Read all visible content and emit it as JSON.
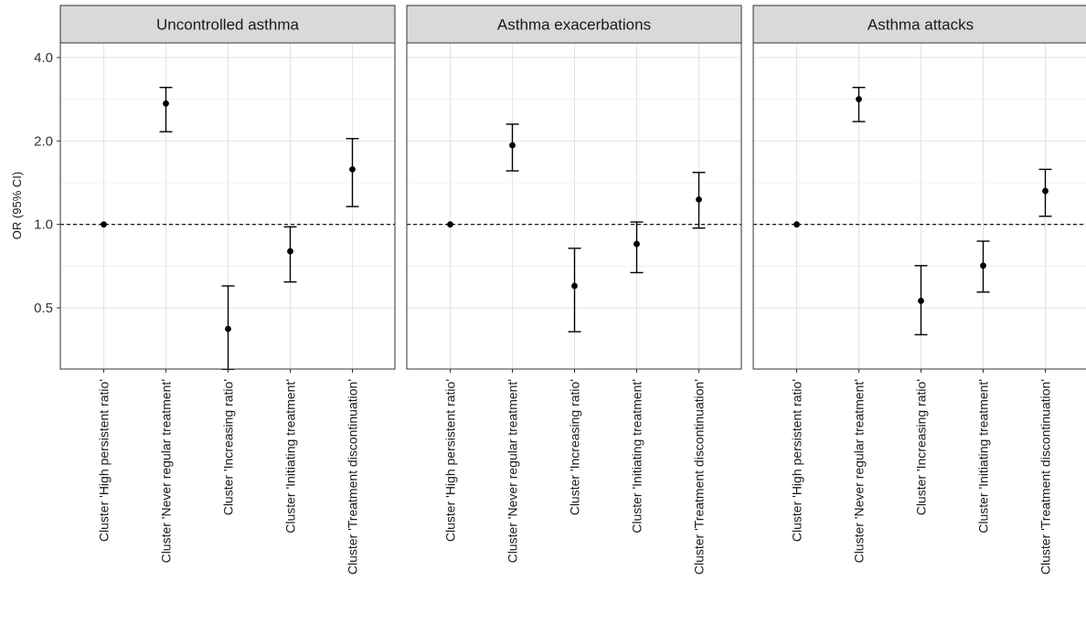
{
  "chart_data": {
    "type": "scatter",
    "ylabel": "OR (95% CI)",
    "yscale": "log",
    "yticks": [
      0.5,
      1.0,
      2.0,
      4.0
    ],
    "ytick_labels": [
      "0.5",
      "1.0",
      "2.0",
      "4.0"
    ],
    "ylim": [
      0.32,
      4.4
    ],
    "reference_line": 1.0,
    "grid": true,
    "categories": [
      "Cluster 'High persistent ratio'",
      "Cluster 'Never regular treatment'",
      "Cluster 'Increasing ratio'",
      "Cluster 'Initiating treatment'",
      "Cluster 'Treatment discontinuation'"
    ],
    "panels": [
      {
        "title": "Uncontrolled asthma",
        "points": [
          {
            "or": 1.0,
            "lower": 1.0,
            "upper": 1.0
          },
          {
            "or": 2.73,
            "lower": 2.16,
            "upper": 3.12
          },
          {
            "or": 0.42,
            "lower": 0.3,
            "upper": 0.6
          },
          {
            "or": 0.8,
            "lower": 0.62,
            "upper": 0.98
          },
          {
            "or": 1.58,
            "lower": 1.16,
            "upper": 2.04
          }
        ]
      },
      {
        "title": "Asthma exacerbations",
        "points": [
          {
            "or": 1.0,
            "lower": 1.0,
            "upper": 1.0
          },
          {
            "or": 1.93,
            "lower": 1.56,
            "upper": 2.3
          },
          {
            "or": 0.6,
            "lower": 0.41,
            "upper": 0.82
          },
          {
            "or": 0.85,
            "lower": 0.67,
            "upper": 1.02
          },
          {
            "or": 1.23,
            "lower": 0.97,
            "upper": 1.54
          }
        ]
      },
      {
        "title": "Asthma attacks",
        "points": [
          {
            "or": 1.0,
            "lower": 1.0,
            "upper": 1.0
          },
          {
            "or": 2.83,
            "lower": 2.35,
            "upper": 3.12
          },
          {
            "or": 0.53,
            "lower": 0.4,
            "upper": 0.71
          },
          {
            "or": 0.71,
            "lower": 0.57,
            "upper": 0.87
          },
          {
            "or": 1.32,
            "lower": 1.07,
            "upper": 1.58
          }
        ]
      }
    ]
  }
}
